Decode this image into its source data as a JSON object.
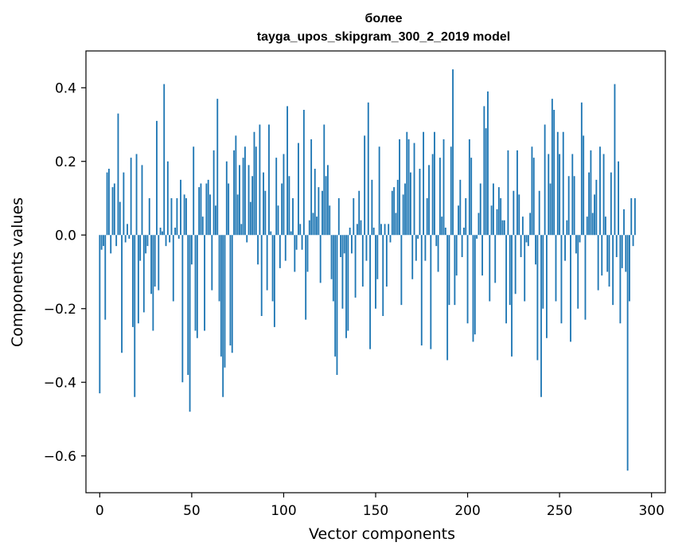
{
  "chart_data": {
    "type": "bar",
    "title": "более",
    "subtitle": "tayga_upos_skipgram_300_2_2019 model",
    "xlabel": "Vector components",
    "ylabel": "Components values",
    "xlim": [
      -7.5,
      307.5
    ],
    "ylim": [
      -0.7,
      0.5
    ],
    "xticks": [
      0,
      50,
      100,
      150,
      200,
      250,
      300
    ],
    "yticks": [
      -0.6,
      -0.4,
      -0.2,
      0.0,
      0.2,
      0.4
    ],
    "xtick_labels": [
      "0",
      "50",
      "100",
      "150",
      "200",
      "250",
      "300"
    ],
    "ytick_labels": [
      "−0.6",
      "−0.4",
      "−0.2",
      "0.0",
      "0.2",
      "0.4"
    ],
    "bar_color": "#1f77b4",
    "grid": false,
    "series": [
      {
        "x_start": 0,
        "values": [
          -0.43,
          -0.04,
          -0.03,
          -0.23,
          0.17,
          0.18,
          -0.05,
          0.13,
          0.14,
          -0.03,
          0.33,
          0.09,
          -0.32,
          0.17,
          -0.02,
          0.03,
          -0.01,
          0.21,
          -0.25,
          -0.44,
          0.22,
          -0.24,
          -0.07,
          0.19,
          -0.21,
          -0.05,
          -0.03,
          0.1,
          -0.16,
          -0.26,
          -0.14,
          0.31,
          -0.15,
          0.02,
          0.01,
          0.41,
          -0.03,
          0.2,
          -0.02,
          0.1,
          -0.18,
          0.02,
          0.1,
          -0.01,
          0.15,
          -0.4,
          0.11,
          0.1,
          -0.38,
          -0.48,
          -0.08,
          0.24,
          -0.26,
          -0.28,
          0.13,
          0.14,
          0.05,
          -0.26,
          0.14,
          0.15,
          0.11,
          -0.15,
          0.23,
          0.08,
          0.37,
          -0.18,
          -0.33,
          -0.44,
          -0.36,
          0.2,
          0.14,
          -0.3,
          -0.32,
          0.23,
          0.27,
          0.11,
          0.19,
          0.03,
          0.21,
          0.24,
          -0.02,
          0.19,
          0.09,
          0.16,
          0.28,
          0.24,
          -0.08,
          0.3,
          -0.22,
          0.17,
          0.12,
          -0.15,
          0.3,
          0.01,
          -0.18,
          -0.25,
          0.21,
          0.08,
          -0.09,
          0.14,
          0.22,
          -0.07,
          0.35,
          0.16,
          0.01,
          0.1,
          -0.1,
          -0.04,
          0.25,
          0.03,
          -0.04,
          0.34,
          -0.23,
          -0.1,
          0.04,
          0.26,
          0.06,
          0.18,
          0.05,
          0.13,
          -0.13,
          0.12,
          0.3,
          0.16,
          0.19,
          0.08,
          -0.12,
          -0.18,
          -0.33,
          -0.38,
          0.1,
          -0.06,
          -0.2,
          -0.05,
          -0.28,
          -0.26,
          0.02,
          -0.05,
          0.1,
          -0.17,
          0.03,
          0.12,
          0.04,
          -0.14,
          0.27,
          -0.07,
          0.36,
          -0.31,
          0.15,
          0.02,
          -0.2,
          -0.12,
          0.24,
          0.03,
          -0.22,
          0.03,
          -0.14,
          0.03,
          -0.02,
          0.12,
          0.13,
          0.06,
          0.15,
          0.26,
          -0.19,
          0.11,
          0.14,
          0.28,
          0.26,
          0.17,
          -0.12,
          0.25,
          -0.07,
          -0.01,
          0.18,
          -0.3,
          0.28,
          -0.07,
          0.1,
          0.19,
          -0.31,
          0.22,
          0.28,
          -0.03,
          -0.1,
          0.21,
          0.05,
          0.26,
          0.02,
          -0.34,
          -0.19,
          0.24,
          0.45,
          -0.19,
          -0.11,
          0.08,
          0.15,
          -0.06,
          0.02,
          0.1,
          -0.24,
          0.26,
          0.21,
          -0.29,
          -0.27,
          -0.01,
          0.06,
          0.14,
          -0.11,
          0.35,
          0.29,
          0.39,
          -0.18,
          0.08,
          0.14,
          -0.13,
          0.07,
          0.13,
          0.1,
          0.04,
          0.04,
          -0.24,
          0.23,
          -0.19,
          -0.33,
          0.12,
          -0.16,
          0.23,
          0.11,
          -0.06,
          0.05,
          -0.18,
          -0.02,
          -0.03,
          0.06,
          0.24,
          0.21,
          -0.08,
          -0.34,
          0.12,
          -0.44,
          -0.2,
          0.3,
          -0.28,
          0.22,
          0.14,
          0.37,
          0.34,
          -0.18,
          0.28,
          0.22,
          -0.24,
          0.28,
          -0.07,
          0.04,
          0.16,
          -0.29,
          0.22,
          0.16,
          -0.05,
          -0.2,
          -0.02,
          0.36,
          0.27,
          -0.23,
          0.05,
          0.17,
          0.23,
          0.06,
          0.11,
          0.15,
          -0.15,
          0.24,
          -0.11,
          0.22,
          0.05,
          -0.1,
          -0.14,
          0.17,
          -0.19,
          0.41,
          -0.06,
          0.2,
          -0.24,
          -0.09,
          0.07,
          -0.1,
          -0.64,
          -0.18,
          0.1,
          -0.03,
          0.1
        ]
      }
    ]
  }
}
